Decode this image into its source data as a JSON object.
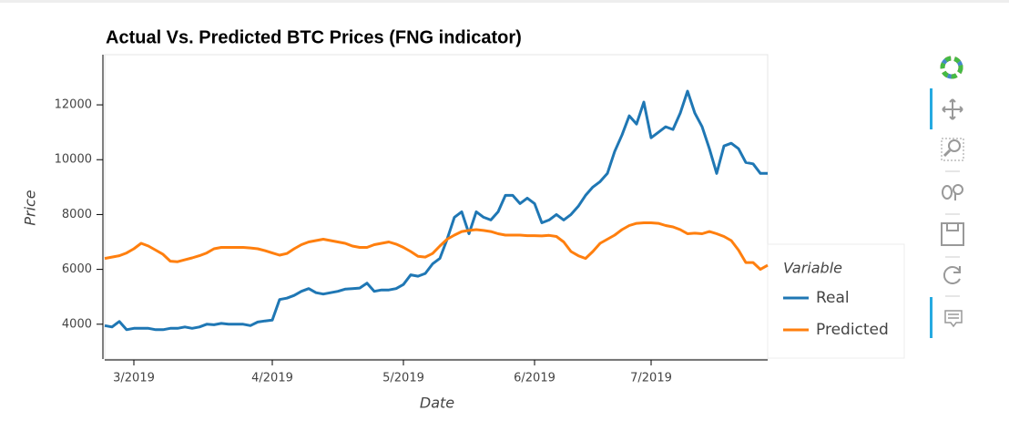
{
  "chart_data": {
    "type": "line",
    "title": "Actual Vs. Predicted BTC Prices (FNG indicator)",
    "x_label": "Date",
    "y_label": "Price",
    "legend_title": "Variable",
    "legend": "right",
    "xlim": [
      0,
      91
    ],
    "xticks": [
      {
        "value": 4,
        "label": "3/2019"
      },
      {
        "value": 23,
        "label": "4/2019"
      },
      {
        "value": 41,
        "label": "5/2019"
      },
      {
        "value": 59,
        "label": "6/2019"
      },
      {
        "value": 75,
        "label": "7/2019"
      }
    ],
    "ylim": [
      2730,
      13830
    ],
    "yticks": [
      4000,
      6000,
      8000,
      10000,
      12000
    ],
    "series": [
      {
        "name": "Real",
        "color": "#1f77b4",
        "values": [
          3950,
          3900,
          4100,
          3800,
          3850,
          3850,
          3850,
          3800,
          3800,
          3850,
          3850,
          3900,
          3850,
          3900,
          4000,
          3980,
          4030,
          4000,
          4000,
          4000,
          3950,
          4080,
          4120,
          4150,
          4900,
          4950,
          5050,
          5200,
          5300,
          5150,
          5100,
          5150,
          5200,
          5280,
          5300,
          5320,
          5500,
          5200,
          5250,
          5250,
          5300,
          5450,
          5800,
          5750,
          5850,
          6200,
          6400,
          7100,
          7900,
          8100,
          7300,
          8100,
          7900,
          7800,
          8100,
          8700,
          8700,
          8400,
          8600,
          8400,
          7700,
          7800,
          8000,
          7800,
          8000,
          8300,
          8700,
          9000,
          9200,
          9500,
          10300,
          10900,
          11600,
          11300,
          12100,
          10800,
          11000,
          11200,
          11100,
          11700,
          12500,
          11700,
          11200,
          10400,
          9500,
          10500,
          10600,
          10400,
          9900,
          9850,
          9500,
          9500
        ]
      },
      {
        "name": "Predicted",
        "color": "#ff7f0e",
        "values": [
          6400,
          6450,
          6500,
          6600,
          6750,
          6950,
          6850,
          6700,
          6550,
          6300,
          6280,
          6350,
          6420,
          6500,
          6600,
          6750,
          6800,
          6800,
          6800,
          6800,
          6780,
          6750,
          6680,
          6600,
          6520,
          6580,
          6750,
          6900,
          7000,
          7050,
          7100,
          7050,
          7000,
          6950,
          6850,
          6800,
          6800,
          6900,
          6950,
          7000,
          6920,
          6800,
          6650,
          6480,
          6450,
          6580,
          6850,
          7100,
          7250,
          7380,
          7420,
          7450,
          7420,
          7380,
          7300,
          7250,
          7250,
          7250,
          7230,
          7230,
          7220,
          7240,
          7200,
          7000,
          6650,
          6500,
          6400,
          6650,
          6950,
          7100,
          7250,
          7450,
          7600,
          7680,
          7700,
          7700,
          7680,
          7600,
          7550,
          7450,
          7300,
          7320,
          7300,
          7380,
          7300,
          7200,
          7050,
          6700,
          6250,
          6250,
          6000,
          6150
        ]
      }
    ]
  }
}
